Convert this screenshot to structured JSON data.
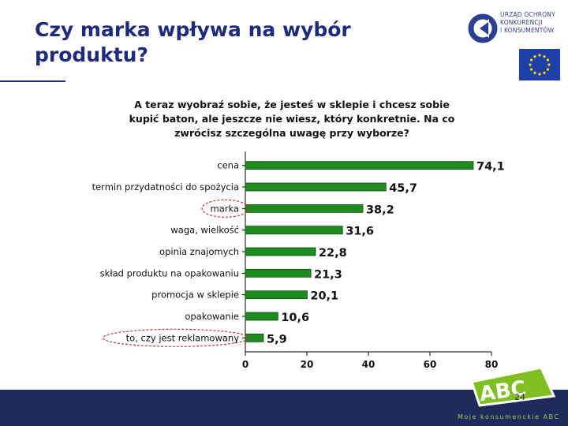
{
  "slide": {
    "title_line1": "Czy marka wpływa na wybór",
    "title_line2": "produktu?",
    "page_number": "24"
  },
  "logo": {
    "line1": "URZĄD OCHRONY",
    "line2": "KONKURENCJI",
    "line3": "I KONSUMENTÓW"
  },
  "footer": {
    "badge_text": "ABC",
    "tagline": "Moje konsumenckie ABC"
  },
  "colors": {
    "title": "#1e2a7a",
    "bar": "#1f8a1f",
    "highlight_ellipse": "#cc3333",
    "band": "#1e2a5c",
    "badge": "#7fbf1f"
  },
  "chart_data": {
    "type": "bar",
    "orientation": "horizontal",
    "question": [
      "A teraz wyobraź sobie, że jesteś w sklepie i chcesz sobie",
      "kupić baton, ale jeszcze nie wiesz, który konkretnie. Na co",
      "zwrócisz szczególna uwagę przy wyborze?"
    ],
    "categories": [
      "cena",
      "termin przydatności do spożycia",
      "marka",
      "waga, wielkość",
      "opinia znajomych",
      "skład produktu na opakowaniu",
      "promocja w sklepie",
      "opakowanie",
      "to, czy jest reklamowany"
    ],
    "values": [
      74.1,
      45.7,
      38.2,
      31.6,
      22.8,
      21.3,
      20.1,
      10.6,
      5.9
    ],
    "value_labels": [
      "74,1",
      "45,7",
      "38,2",
      "31,6",
      "22,8",
      "21,3",
      "20,1",
      "10,6",
      "5,9"
    ],
    "xlim": [
      0,
      80
    ],
    "xticks": [
      0,
      20,
      40,
      60,
      80
    ],
    "highlighted_categories": [
      "marka",
      "to, czy jest reklamowany"
    ],
    "grid": false
  }
}
